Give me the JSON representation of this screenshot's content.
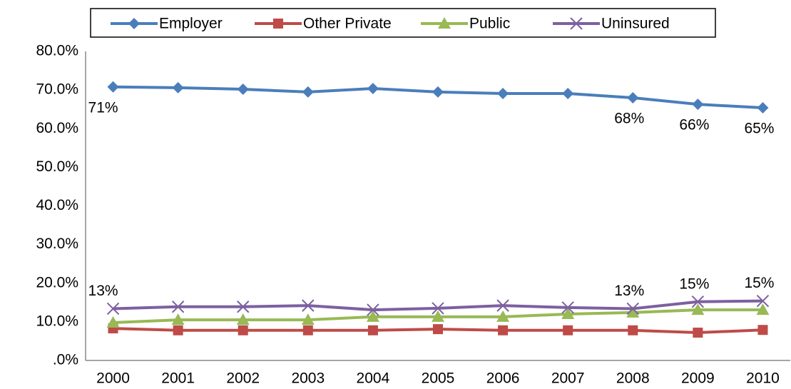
{
  "chart_data": {
    "type": "line",
    "categories": [
      "2000",
      "2001",
      "2002",
      "2003",
      "2004",
      "2005",
      "2006",
      "2007",
      "2008",
      "2009",
      "2010"
    ],
    "series": [
      {
        "name": "Employer",
        "color": "#4a7ebb",
        "marker": "diamond",
        "values": [
          70.8,
          70.6,
          70.2,
          69.5,
          70.4,
          69.5,
          69.1,
          69.1,
          68.0,
          66.3,
          65.4
        ],
        "value_labels": [
          "71%",
          null,
          null,
          null,
          null,
          null,
          null,
          null,
          "68%",
          "66%",
          "65%"
        ]
      },
      {
        "name": "Other Private",
        "color": "#be4b48",
        "marker": "square",
        "values": [
          8.3,
          7.8,
          7.8,
          7.8,
          7.8,
          8.1,
          7.8,
          7.8,
          7.8,
          7.2,
          7.9
        ]
      },
      {
        "name": "Public",
        "color": "#98b954",
        "marker": "triangle",
        "values": [
          9.8,
          10.5,
          10.5,
          10.5,
          11.3,
          11.3,
          11.3,
          12.0,
          12.4,
          13.1,
          13.1
        ]
      },
      {
        "name": "Uninsured",
        "color": "#7d60a0",
        "marker": "x",
        "values": [
          13.4,
          13.9,
          13.9,
          14.2,
          13.1,
          13.5,
          14.2,
          13.7,
          13.4,
          15.2,
          15.4
        ],
        "value_labels": [
          "13%",
          null,
          null,
          null,
          null,
          null,
          null,
          null,
          "13%",
          "15%",
          "15%"
        ]
      }
    ],
    "ylim": [
      0,
      80
    ],
    "yticks": [
      {
        "value": 0,
        "label": ".0%"
      },
      {
        "value": 10,
        "label": "10.0%"
      },
      {
        "value": 20,
        "label": "20.0%"
      },
      {
        "value": 30,
        "label": "30.0%"
      },
      {
        "value": 40,
        "label": "40.0%"
      },
      {
        "value": 50,
        "label": "50.0%"
      },
      {
        "value": 60,
        "label": "60.0%"
      },
      {
        "value": 70,
        "label": "70.0%"
      },
      {
        "value": 80,
        "label": "80.0%"
      }
    ],
    "grid": false,
    "legend": "top"
  }
}
